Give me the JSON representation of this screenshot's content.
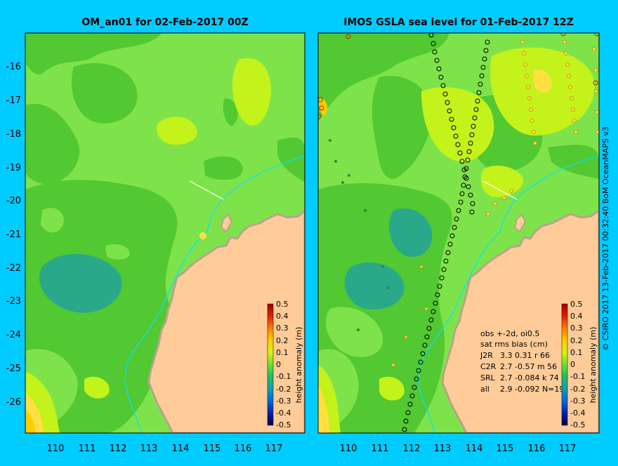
{
  "left_panel": {
    "title": "OM_an01 for 02-Feb-2017 00Z",
    "y_ticks": [
      "-16",
      "-17",
      "-18",
      "-19",
      "-20",
      "-21",
      "-22",
      "-23",
      "-24",
      "-25",
      "-26"
    ],
    "x_ticks": [
      "110",
      "111",
      "112",
      "113",
      "114",
      "115",
      "116",
      "117"
    ],
    "colorbar": {
      "ticks": [
        "0.5",
        "0.4",
        "0.3",
        "0.2",
        "0.1",
        "0",
        "-0.1",
        "-0.2",
        "-0.3",
        "-0.4",
        "-0.5"
      ],
      "label": "height anomaly (m)"
    }
  },
  "right_panel": {
    "title": "IMOS GSLA sea level  for 01-Feb-2017 12Z",
    "x_ticks": [
      "110",
      "111",
      "112",
      "113",
      "114",
      "115",
      "116",
      "117"
    ],
    "stats": {
      "line1": "obs +-2d, oi0.5",
      "line2": "sat rms bias (cm)",
      "rows": [
        {
          "sat": "J2R",
          "vals": "3.3  0.31  r 66"
        },
        {
          "sat": "C2R",
          "vals": "2.7 -0.57  m 56"
        },
        {
          "sat": "SRL",
          "vals": "2.7 -0.084  k 74"
        },
        {
          "sat": "all",
          "vals": "2.9 -0.092  N=19"
        }
      ]
    },
    "colorbar": {
      "ticks": [
        "0.5",
        "0.4",
        "0.3",
        "0.2",
        "0.1",
        "0",
        "-0.1",
        "-0.2",
        "-0.3",
        "-0.4",
        "-0.5"
      ],
      "label": "height anomaly (m)"
    }
  },
  "credit": "© CSIRO 2017   13-Feb-2017 00:32:40 BoM OceanMAPS v3",
  "colors": {
    "frame_bg": "#00ccff",
    "land": "#ffcc99",
    "coast": "#b8a48c",
    "ocean_light_green": "#7ee34a",
    "ocean_green": "#52c832",
    "ocean_yellow_green": "#c4f21b",
    "ocean_teal": "#2aa88a"
  }
}
